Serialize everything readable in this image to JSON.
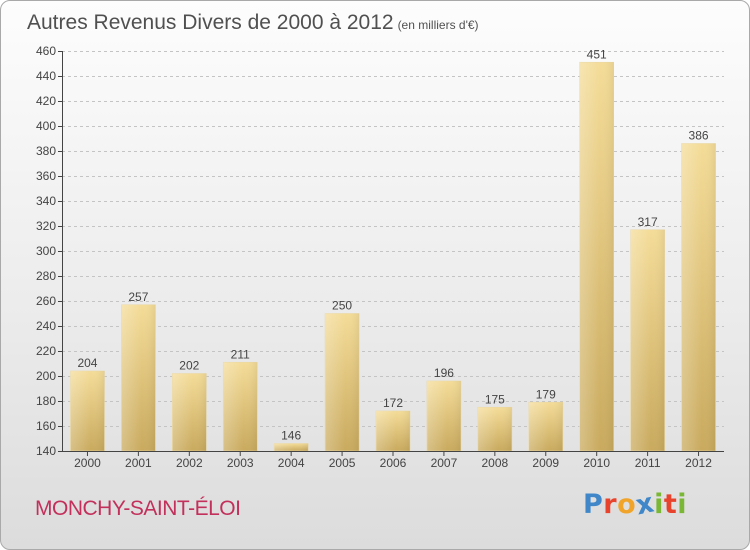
{
  "title": "Autres Revenus Divers de 2000 à 2012",
  "subtitle": "(en milliers d'€)",
  "city": "MONCHY-SAINT-ÉLOI",
  "logo": {
    "letters": [
      "P",
      "r",
      "o",
      "x",
      "i",
      "t",
      "i"
    ],
    "colors": [
      "#3f87c8",
      "#e8442d",
      "#f0a42a",
      "#3f87c8",
      "#79b735",
      "#e8442d",
      "#79b735"
    ]
  },
  "colors": {
    "bar_light": "#f4dc98",
    "bar_dark": "#c9aa5e",
    "axis": "#444444",
    "grid": "#c4c4c4",
    "text": "#444444",
    "title": "#505050",
    "city": "#c2305b"
  },
  "chart_data": {
    "type": "bar",
    "categories": [
      "2000",
      "2001",
      "2002",
      "2003",
      "2004",
      "2005",
      "2006",
      "2007",
      "2008",
      "2009",
      "2010",
      "2011",
      "2012"
    ],
    "values": [
      204,
      257,
      202,
      211,
      146,
      250,
      172,
      196,
      175,
      179,
      451,
      317,
      386
    ],
    "title": "Autres Revenus Divers de 2000 à 2012",
    "subtitle": "(en milliers d'€)",
    "ylim": [
      140,
      460
    ],
    "yticks": [
      140,
      160,
      180,
      200,
      220,
      240,
      260,
      280,
      300,
      320,
      340,
      360,
      380,
      400,
      420,
      440,
      460
    ],
    "grid": true,
    "data_labels": true
  }
}
